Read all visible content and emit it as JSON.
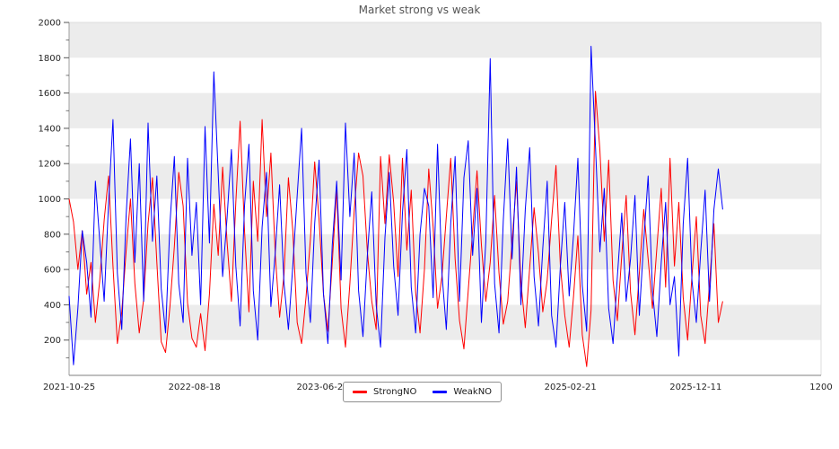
{
  "title": "Market strong vs weak",
  "legend": {
    "items": [
      {
        "label": "StrongNO",
        "color": "#ff0000"
      },
      {
        "label": "WeakNO",
        "color": "#0000ff"
      }
    ]
  },
  "chart_data": {
    "type": "line",
    "title": "Market strong vs weak",
    "xlabel": "",
    "ylabel": "",
    "xlim": [
      0,
      1200
    ],
    "ylim": [
      0,
      2000
    ],
    "grid": "alternating-horizontal-bands",
    "band_step": 200,
    "band_color": "#ececec",
    "y_tick_step": 200,
    "y_minor_tick_step": 100,
    "y_tick_labels": [
      "200",
      "400",
      "600",
      "800",
      "1000",
      "1200",
      "1400",
      "1600",
      "1800",
      "2000"
    ],
    "x_ticks": [
      {
        "pos": 0,
        "label": "2021-10-25"
      },
      {
        "pos": 200,
        "label": "2022-08-18"
      },
      {
        "pos": 400,
        "label": "2023-06-2"
      },
      {
        "pos": 600,
        "label": ""
      },
      {
        "pos": 800,
        "label": "2025-02-21"
      },
      {
        "pos": 1000,
        "label": "2025-12-11"
      },
      {
        "pos": 1200,
        "label": "1200"
      }
    ],
    "legend_position": "bottom-center",
    "x0": 0,
    "dx": 7,
    "series": [
      {
        "name": "StrongNO",
        "color": "#ff0000",
        "values": [
          1000,
          870,
          600,
          820,
          460,
          640,
          300,
          540,
          880,
          1130,
          620,
          180,
          360,
          700,
          1000,
          520,
          240,
          430,
          860,
          1120,
          640,
          190,
          130,
          390,
          730,
          1150,
          960,
          410,
          210,
          160,
          350,
          140,
          460,
          970,
          680,
          1180,
          760,
          420,
          980,
          1440,
          820,
          360,
          1100,
          760,
          1450,
          900,
          1260,
          680,
          330,
          570,
          1120,
          820,
          300,
          180,
          440,
          770,
          1210,
          880,
          460,
          250,
          640,
          1060,
          380,
          160,
          520,
          930,
          1260,
          1130,
          700,
          420,
          260,
          1240,
          860,
          1250,
          980,
          560,
          1230,
          710,
          1050,
          470,
          240,
          600,
          1170,
          840,
          380,
          560,
          900,
          1230,
          660,
          310,
          150,
          480,
          820,
          1160,
          740,
          420,
          640,
          1020,
          580,
          290,
          420,
          760,
          1100,
          530,
          270,
          610,
          950,
          690,
          360,
          540,
          880,
          1190,
          620,
          340,
          160,
          450,
          790,
          230,
          50,
          370,
          1610,
          1280,
          760,
          1220,
          540,
          310,
          680,
          1020,
          470,
          230,
          580,
          940,
          660,
          380,
          720,
          1060,
          500,
          1230,
          620,
          980,
          440,
          200,
          560,
          900,
          340,
          180,
          520,
          860,
          300,
          420
        ]
      },
      {
        "name": "WeakNO",
        "color": "#0000ff",
        "values": [
          450,
          60,
          380,
          820,
          640,
          330,
          1100,
          760,
          420,
          980,
          1450,
          580,
          260,
          900,
          1340,
          640,
          1200,
          420,
          1430,
          760,
          1130,
          490,
          240,
          860,
          1240,
          520,
          300,
          1230,
          680,
          980,
          400,
          1410,
          750,
          1720,
          1140,
          560,
          890,
          1280,
          620,
          280,
          960,
          1310,
          480,
          200,
          840,
          1150,
          390,
          700,
          1080,
          520,
          260,
          620,
          1020,
          1400,
          580,
          300,
          860,
          1220,
          460,
          180,
          740,
          1100,
          540,
          1430,
          900,
          1260,
          480,
          220,
          680,
          1040,
          400,
          160,
          780,
          1150,
          620,
          340,
          920,
          1280,
          500,
          240,
          800,
          1060,
          960,
          440,
          1310,
          580,
          260,
          860,
          1240,
          420,
          1120,
          1330,
          680,
          1060,
          300,
          760,
          1795,
          520,
          240,
          880,
          1340,
          660,
          1180,
          400,
          940,
          1290,
          560,
          280,
          720,
          1100,
          340,
          160,
          620,
          980,
          450,
          800,
          1230,
          510,
          250,
          1865,
          1300,
          700,
          1060,
          380,
          180,
          560,
          920,
          420,
          660,
          1020,
          340,
          760,
          1130,
          480,
          220,
          640,
          980,
          400,
          560,
          110,
          860,
          1230,
          540,
          300,
          700,
          1050,
          420,
          940,
          1170,
          940
        ]
      }
    ]
  },
  "colors": {
    "band_gray": "#ececec",
    "spine_left": "#9e9e9e",
    "spine_bottom": "#7f7f7f",
    "spine_faint": "#dddddd",
    "tick": "#555555",
    "text": "#262626",
    "title": "#555555"
  }
}
